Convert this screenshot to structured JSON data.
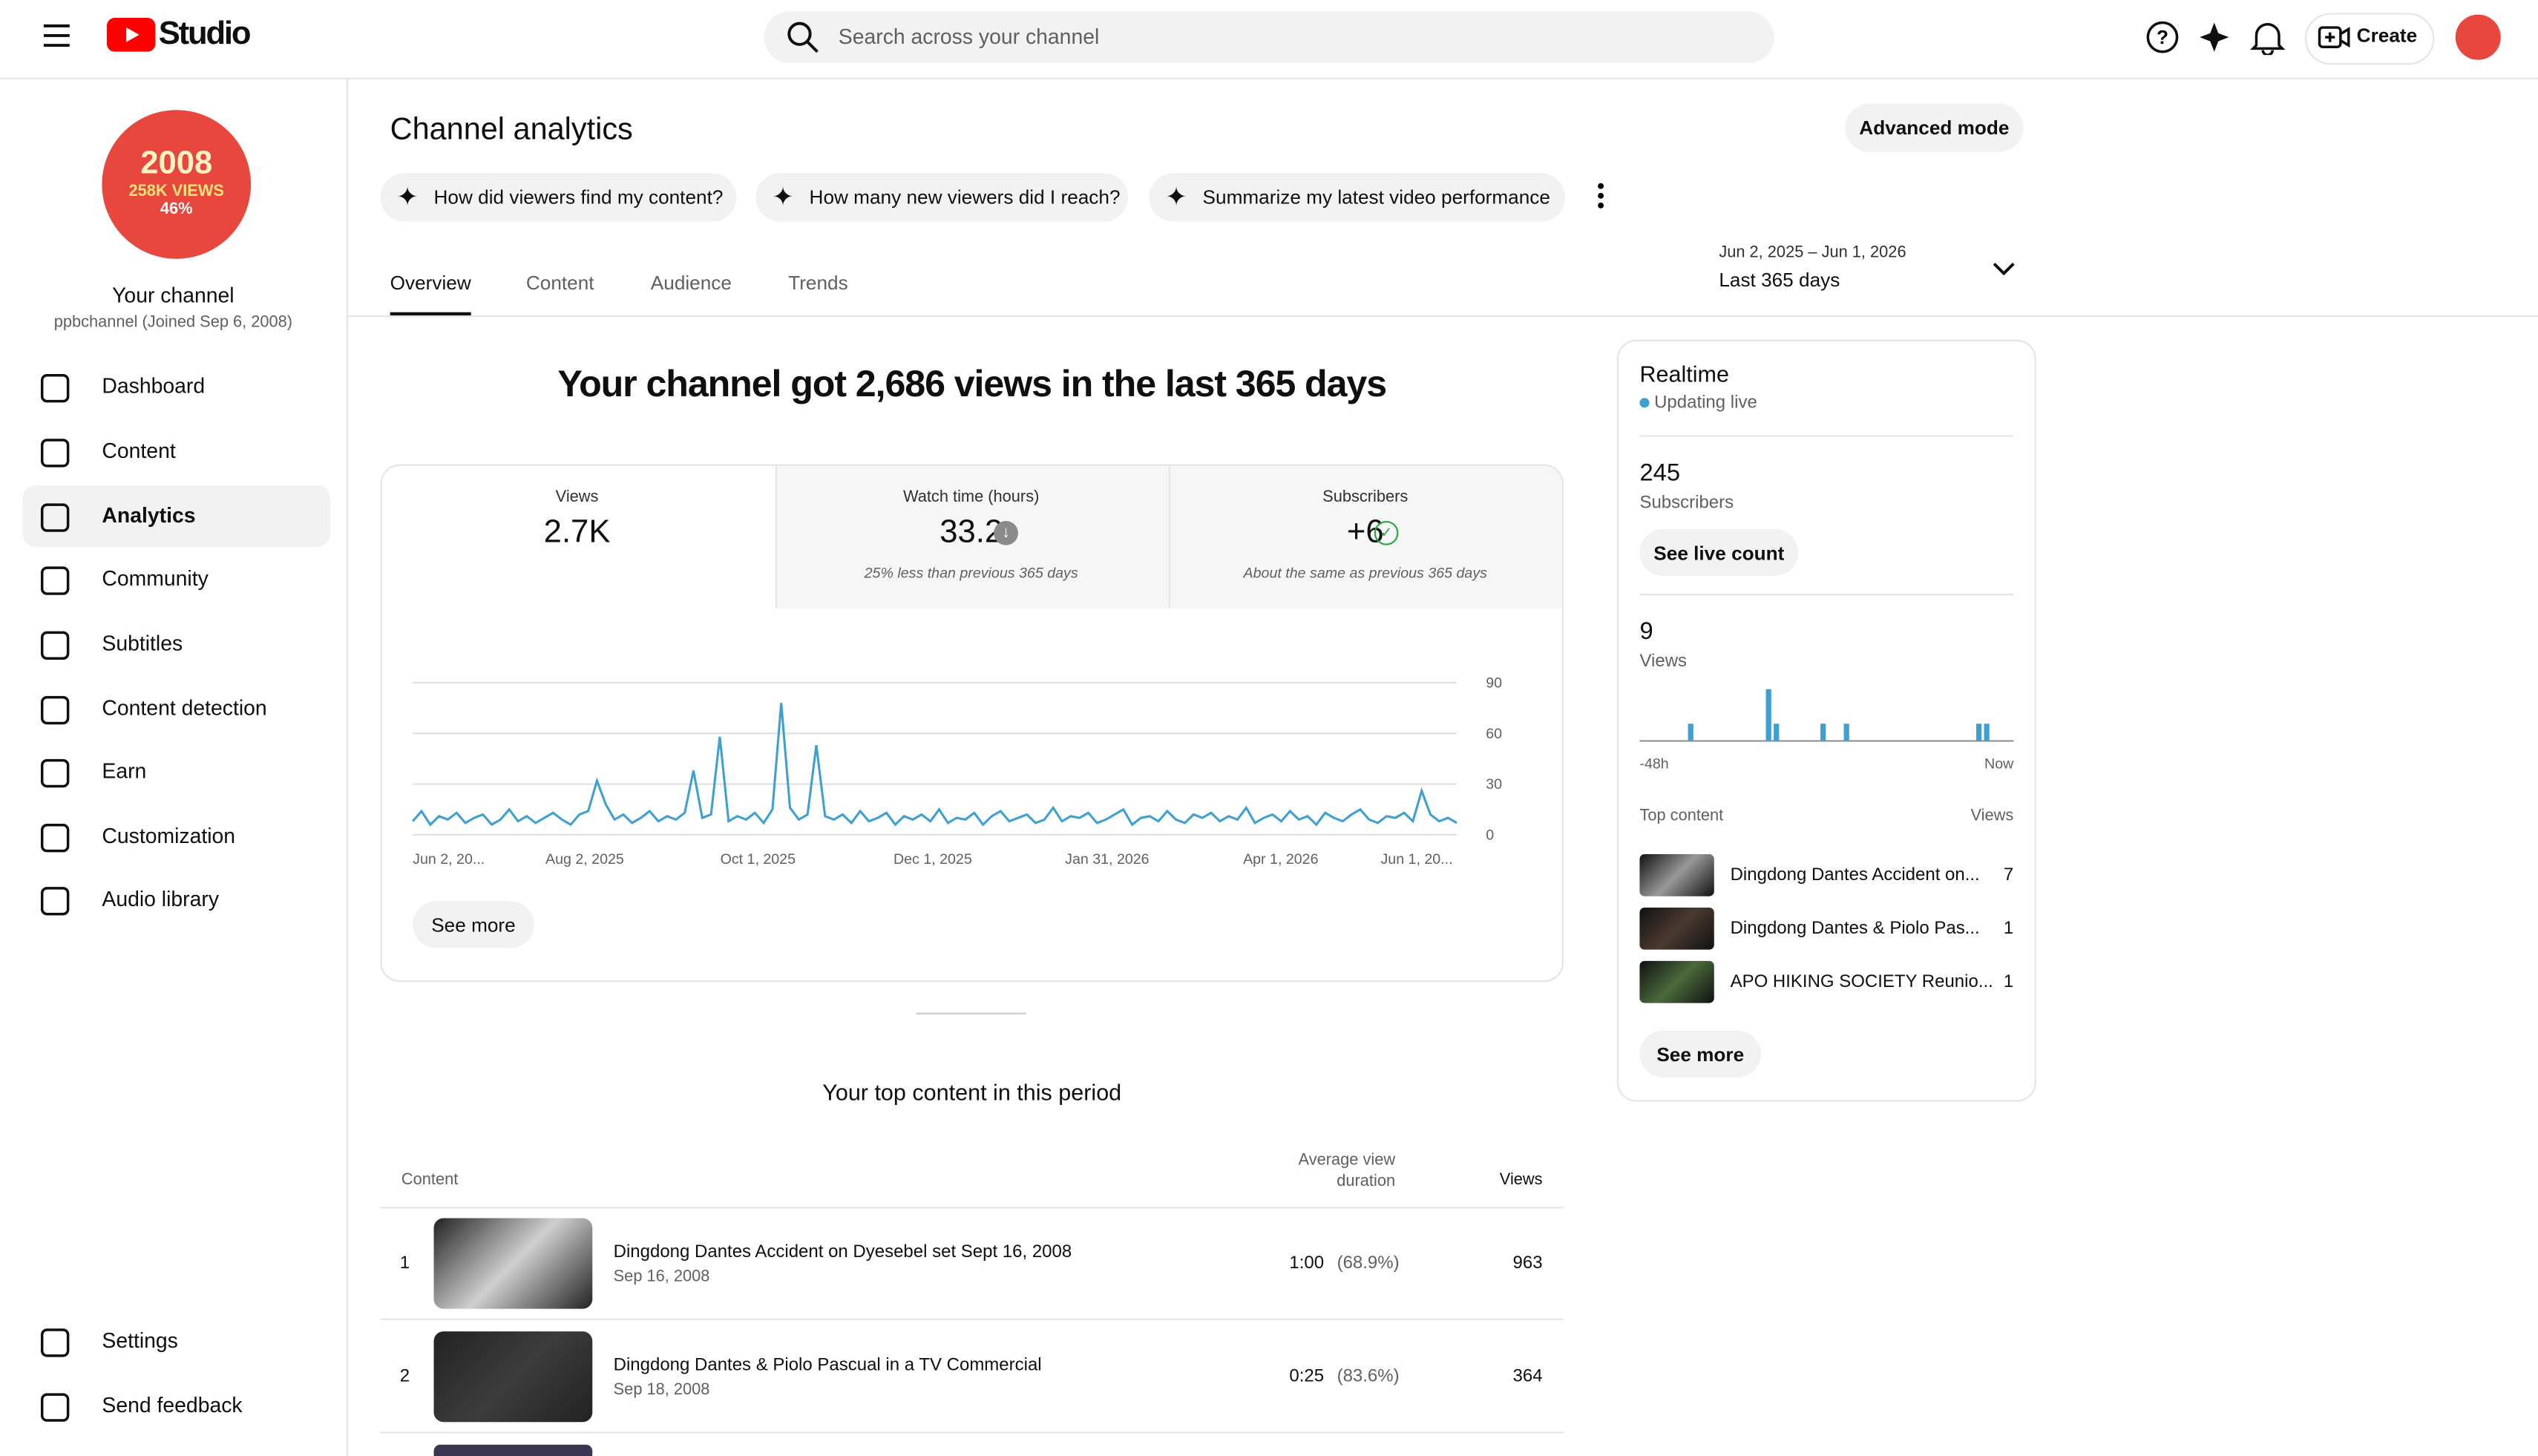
{
  "header": {
    "logo": "Studio",
    "search_placeholder": "Search across your channel",
    "create": "Create"
  },
  "sidebar": {
    "avatar_lines": [
      "2008",
      "258K VIEWS",
      "46%"
    ],
    "channel_label": "Your channel",
    "channel_handle": "ppbchannel (Joined Sep 6, 2008)",
    "nav": [
      "Dashboard",
      "Content",
      "Analytics",
      "Community",
      "Subtitles",
      "Content detection",
      "Earn",
      "Customization",
      "Audio library"
    ],
    "bottom_nav": [
      "Settings",
      "Send feedback"
    ]
  },
  "page": {
    "title": "Channel analytics",
    "advanced": "Advanced mode",
    "chips": [
      "How did viewers find my content?",
      "How many new viewers did I reach?",
      "Summarize my latest video performance"
    ],
    "tabs": [
      "Overview",
      "Content",
      "Audience",
      "Trends"
    ],
    "date_range": "Jun 2, 2025 – Jun 1, 2026",
    "date_label": "Last 365 days"
  },
  "overview": {
    "headline": "Your channel got 2,686 views in the last 365 days",
    "metrics": [
      {
        "label": "Views",
        "value": "2.7K"
      },
      {
        "label": "Watch time (hours)",
        "value": "33.2",
        "note": "25% less than previous 365 days"
      },
      {
        "label": "Subscribers",
        "value": "+6",
        "note": "About the same as previous 365 days"
      }
    ],
    "chart": {
      "type": "line",
      "color": "#3ea0d0",
      "ylim": [
        0,
        90
      ],
      "yticks": [
        0,
        30,
        60,
        90
      ],
      "grid": true,
      "x_labels": [
        "Jun 2, 20...",
        "Aug 2, 2025",
        "Oct 1, 2025",
        "Dec 1, 2025",
        "Jan 31, 2026",
        "Apr 1, 2026",
        "Jun 1, 20..."
      ],
      "values": [
        8,
        14,
        6,
        11,
        9,
        13,
        7,
        10,
        12,
        6,
        9,
        15,
        8,
        11,
        7,
        10,
        13,
        9,
        6,
        12,
        14,
        32,
        18,
        9,
        12,
        7,
        10,
        14,
        8,
        11,
        9,
        13,
        38,
        10,
        12,
        58,
        8,
        11,
        9,
        13,
        7,
        15,
        78,
        16,
        9,
        12,
        53,
        11,
        9,
        12,
        7,
        14,
        8,
        10,
        13,
        6,
        11,
        9,
        12,
        8,
        15,
        7,
        10,
        9,
        13,
        6,
        11,
        14,
        8,
        10,
        12,
        7,
        9,
        16,
        8,
        11,
        10,
        13,
        7,
        9,
        12,
        15,
        6,
        10,
        11,
        8,
        14,
        9,
        7,
        12,
        10,
        13,
        8,
        11,
        9,
        16,
        7,
        10,
        12,
        8,
        14,
        9,
        11,
        6,
        13,
        10,
        8,
        12,
        15,
        9,
        7,
        11,
        10,
        13,
        8,
        26,
        12,
        8,
        10,
        7
      ]
    },
    "see_more": "See more"
  },
  "top_content": {
    "title": "Your top content in this period",
    "columns": [
      "Content",
      "Average view duration",
      "Views"
    ],
    "rows": [
      {
        "rank": "1",
        "title": "Dingdong Dantes Accident on Dyesebel set Sept 16, 2008",
        "date": "Sep 16, 2008",
        "duration": "1:00",
        "percent": "(68.9%)",
        "views": "963"
      },
      {
        "rank": "2",
        "title": "Dingdong Dantes & Piolo Pascual in a TV Commercial",
        "date": "Sep 18, 2008",
        "duration": "0:25",
        "percent": "(83.6%)",
        "views": "364"
      }
    ]
  },
  "realtime": {
    "title": "Realtime",
    "status": "Updating live",
    "subscribers": "245",
    "subscribers_label": "Subscribers",
    "see_live": "See live count",
    "views": "9",
    "views_label": "Views",
    "chart": {
      "type": "bar",
      "color": "#3ea0d0",
      "x_labels": [
        "-48h",
        "Now"
      ],
      "values": [
        0,
        0,
        0,
        0,
        0,
        0,
        1,
        0,
        0,
        0,
        0,
        0,
        0,
        0,
        0,
        0,
        3,
        1,
        0,
        0,
        0,
        0,
        0,
        1,
        0,
        0,
        1,
        0,
        0,
        0,
        0,
        0,
        0,
        0,
        0,
        0,
        0,
        0,
        0,
        0,
        0,
        0,
        0,
        1,
        1,
        0,
        0,
        0
      ]
    },
    "top_label": "Top content",
    "items": [
      {
        "title": "Dingdong Dantes Accident on...",
        "views": "7"
      },
      {
        "title": "Dingdong Dantes & Piolo Pas...",
        "views": "1"
      },
      {
        "title": "APO HIKING SOCIETY Reunio...",
        "views": "1"
      }
    ],
    "see_more": "See more"
  }
}
